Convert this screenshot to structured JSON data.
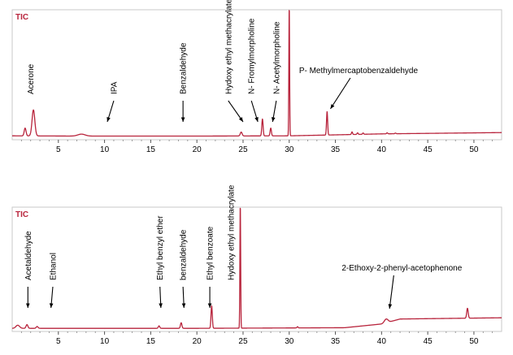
{
  "colors": {
    "trace": "#b8243c",
    "frame": "#c9c9c9",
    "tic_label": "#b8243c",
    "text": "#000000",
    "background": "#ffffff"
  },
  "chart_data": [
    {
      "type": "line",
      "title": "TIC",
      "xlabel": "",
      "ylabel": "",
      "xlim": [
        0,
        53
      ],
      "ylim": [
        0,
        100
      ],
      "x_ticks": [
        5,
        10,
        15,
        20,
        25,
        30,
        35,
        40,
        45,
        50
      ],
      "grid": false,
      "legend": "none",
      "baseline": [
        [
          0,
          3
        ],
        [
          7,
          2.8
        ],
        [
          20,
          2.8
        ],
        [
          30,
          3
        ],
        [
          40,
          4.5
        ],
        [
          53,
          5.5
        ]
      ],
      "peaks": [
        {
          "x": 1.4,
          "h": 6,
          "w": 0.1
        },
        {
          "x": 2.3,
          "h": 20,
          "w": 0.15
        },
        {
          "x": 7.5,
          "h": 1.5,
          "w": 0.4
        },
        {
          "x": 24.8,
          "h": 3,
          "w": 0.1
        },
        {
          "x": 27.1,
          "h": 13,
          "w": 0.07
        },
        {
          "x": 28.0,
          "h": 6,
          "w": 0.07
        },
        {
          "x": 30.0,
          "h": 100,
          "w": 0.04
        },
        {
          "x": 34.1,
          "h": 18,
          "w": 0.06
        },
        {
          "x": 36.8,
          "h": 2,
          "w": 0.06
        },
        {
          "x": 37.4,
          "h": 1.2,
          "w": 0.06
        },
        {
          "x": 38.0,
          "h": 1,
          "w": 0.06
        },
        {
          "x": 40.6,
          "h": 0.8,
          "w": 0.06
        },
        {
          "x": 41.5,
          "h": 0.5,
          "w": 0.06
        }
      ],
      "annotations": [
        {
          "text": "Acerone",
          "x": 2.0,
          "arrow": false
        },
        {
          "text": "IPA",
          "x": 11.0,
          "arrow": true,
          "ax": 10.3
        },
        {
          "text": "Benzaldehyde",
          "x": 18.5,
          "arrow": true,
          "ax": 18.5
        },
        {
          "text": "Hydoxy ethyl methacrylate",
          "x": 23.4,
          "arrow": true,
          "ax": 25.0
        },
        {
          "text": "N- Fromylmorpholine",
          "x": 25.9,
          "arrow": true,
          "ax": 26.6
        },
        {
          "text": "N- Acetylmorpholine",
          "x": 28.6,
          "arrow": true,
          "ax": 28.2
        },
        {
          "text": "P- Methylmercaptobenzaldehyde",
          "x": 37.5,
          "horizontal": true,
          "arrow": true,
          "ax": 34.2
        }
      ]
    },
    {
      "type": "line",
      "title": "TIC",
      "xlabel": "",
      "ylabel": "",
      "xlim": [
        0,
        53
      ],
      "ylim": [
        0,
        100
      ],
      "x_ticks": [
        5,
        10,
        15,
        20,
        25,
        30,
        35,
        40,
        45,
        50
      ],
      "grid": false,
      "legend": "none",
      "baseline": [
        [
          0,
          2.5
        ],
        [
          20,
          2.5
        ],
        [
          36,
          3
        ],
        [
          40,
          6
        ],
        [
          42,
          10
        ],
        [
          53,
          11
        ]
      ],
      "peaks": [
        {
          "x": 0.6,
          "h": 2.5,
          "w": 0.2
        },
        {
          "x": 1.6,
          "h": 3,
          "w": 0.1
        },
        {
          "x": 2.7,
          "h": 1.5,
          "w": 0.1
        },
        {
          "x": 15.9,
          "h": 2,
          "w": 0.08
        },
        {
          "x": 18.3,
          "h": 4.5,
          "w": 0.08
        },
        {
          "x": 21.6,
          "h": 18,
          "w": 0.07
        },
        {
          "x": 24.7,
          "h": 100,
          "w": 0.04
        },
        {
          "x": 30.9,
          "h": 1,
          "w": 0.06
        },
        {
          "x": 40.5,
          "h": 3,
          "w": 0.2
        },
        {
          "x": 49.3,
          "h": 8,
          "w": 0.08
        }
      ],
      "annotations": [
        {
          "text": "Acetaldehyde",
          "x": 1.7,
          "arrow": true,
          "ax": 1.7
        },
        {
          "text": "Ethanol",
          "x": 4.4,
          "arrow": true,
          "ax": 4.2
        },
        {
          "text": "Ethyl benzyl ether",
          "x": 16.0,
          "arrow": true,
          "ax": 16.1
        },
        {
          "text": "benzaldehyde",
          "x": 18.5,
          "arrow": true,
          "ax": 18.6
        },
        {
          "text": "Ethyl benzoate",
          "x": 21.4,
          "arrow": true,
          "ax": 21.4
        },
        {
          "text": "Hydoxy ethyl methacrylate",
          "x": 23.7,
          "arrow": false
        },
        {
          "text": "2-Ethoxy-2-phenyl-acetophenone",
          "x": 42.2,
          "horizontal": true,
          "arrow": true,
          "ax": 40.6
        }
      ]
    }
  ]
}
